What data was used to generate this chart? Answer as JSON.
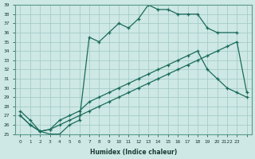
{
  "xlabel": "Humidex (Indice chaleur)",
  "ylabel": "",
  "xlim": [
    -0.5,
    23.5
  ],
  "ylim": [
    25,
    39
  ],
  "yticks": [
    25,
    26,
    27,
    28,
    29,
    30,
    31,
    32,
    33,
    34,
    35,
    36,
    37,
    38,
    39
  ],
  "xtick_positions": [
    0,
    1,
    2,
    3,
    4,
    5,
    6,
    7,
    8,
    9,
    10,
    11,
    12,
    13,
    14,
    15,
    16,
    17,
    18,
    19,
    20,
    21,
    22,
    23
  ],
  "xtick_labels": [
    "0",
    "1",
    "2",
    "3",
    "4",
    "5",
    "6",
    "7",
    "8",
    "9",
    "10",
    "11",
    "12",
    "13",
    "14",
    "15",
    "16",
    "17",
    "18",
    "19",
    "20",
    "2122",
    "23",
    ""
  ],
  "bg_color": "#cde8e5",
  "grid_color": "#a0c8c4",
  "line_color": "#1a6b5a",
  "line1_x": [
    0,
    1,
    2,
    3,
    4,
    5,
    6,
    7,
    8,
    9,
    10,
    11,
    12,
    13,
    14,
    15,
    16,
    17,
    18,
    19,
    20,
    22
  ],
  "line1_y": [
    27.5,
    26.5,
    25.3,
    25.0,
    25.0,
    26.0,
    26.5,
    35.5,
    35.0,
    36.0,
    37.0,
    36.5,
    37.5,
    39.0,
    38.5,
    38.5,
    38.0,
    38.0,
    38.0,
    36.5,
    36.0,
    36.0
  ],
  "line2_x": [
    0,
    1,
    2,
    3,
    4,
    5,
    6,
    7,
    8,
    9,
    10,
    11,
    12,
    13,
    14,
    15,
    16,
    17,
    18,
    19,
    20,
    21,
    22,
    23
  ],
  "line2_y": [
    27.0,
    26.0,
    25.3,
    25.5,
    26.5,
    27.0,
    27.5,
    28.5,
    29.0,
    29.5,
    30.0,
    30.5,
    31.0,
    31.5,
    32.0,
    32.5,
    33.0,
    33.5,
    34.0,
    32.0,
    31.0,
    30.0,
    29.5,
    29.0
  ],
  "line3_x": [
    0,
    1,
    2,
    3,
    4,
    5,
    6,
    7,
    8,
    9,
    10,
    11,
    12,
    13,
    14,
    15,
    16,
    17,
    18,
    19,
    20,
    21,
    22,
    23
  ],
  "line3_y": [
    27.0,
    26.0,
    25.3,
    25.5,
    26.0,
    26.5,
    27.0,
    27.5,
    28.0,
    28.5,
    29.0,
    29.5,
    30.0,
    30.5,
    31.0,
    31.5,
    32.0,
    32.5,
    33.0,
    33.5,
    34.0,
    34.5,
    35.0,
    29.5
  ]
}
